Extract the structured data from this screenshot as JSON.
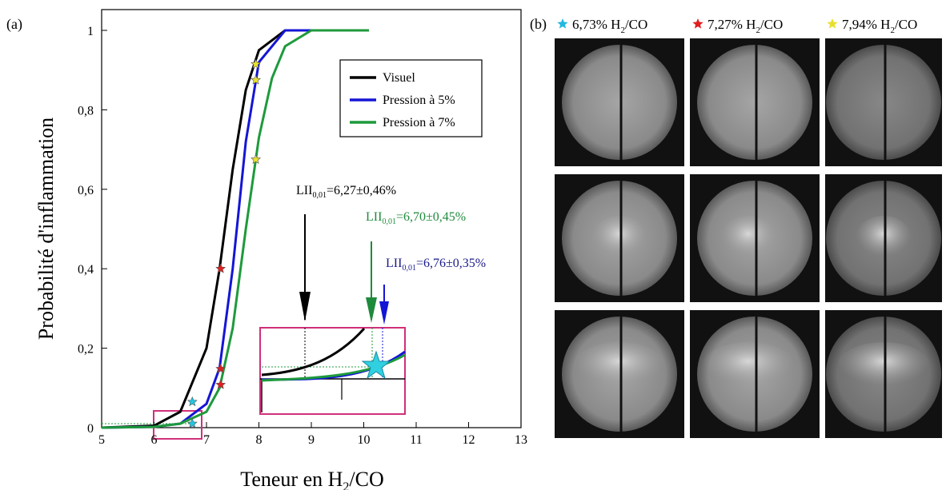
{
  "chart_data": {
    "type": "line",
    "panel_label": "(a)",
    "y_label": "Probabilité d'inflammation",
    "x_label": {
      "before": "Teneur en H",
      "sub": "2",
      "after": "/CO"
    },
    "xlim": [
      5,
      13
    ],
    "ylim": [
      0,
      1.0
    ],
    "xticks": [
      5,
      6,
      7,
      8,
      9,
      10,
      11,
      12,
      13
    ],
    "yticks": [
      0,
      {
        "value": 0.2,
        "label": "0,2"
      },
      {
        "value": 0.4,
        "label": "0,4"
      },
      {
        "value": 0.6,
        "label": "0,6"
      },
      {
        "value": 0.8,
        "label": "0,8"
      },
      1
    ],
    "legend": "upper right",
    "series": [
      {
        "name": "Visuel",
        "color": "#000000",
        "x": [
          5,
          6,
          6.5,
          7,
          7.25,
          7.5,
          7.75,
          8,
          8.5,
          9,
          10
        ],
        "values": [
          0,
          0.005,
          0.04,
          0.2,
          0.4,
          0.65,
          0.85,
          0.95,
          1,
          1,
          1
        ]
      },
      {
        "name": "Pression à 5%",
        "color": "#1515d6",
        "x": [
          5,
          6,
          6.5,
          7,
          7.25,
          7.5,
          7.75,
          8,
          8.5,
          9,
          10
        ],
        "values": [
          0,
          0.002,
          0.01,
          0.06,
          0.15,
          0.4,
          0.72,
          0.92,
          1,
          1,
          1
        ]
      },
      {
        "name": "Pression à 7%",
        "color": "#1e9a3c",
        "x": [
          5,
          6,
          6.5,
          7,
          7.25,
          7.5,
          7.75,
          8,
          8.25,
          8.5,
          9,
          10.1
        ],
        "values": [
          0,
          0.002,
          0.01,
          0.04,
          0.1,
          0.25,
          0.5,
          0.73,
          0.88,
          0.96,
          1,
          1
        ]
      }
    ],
    "markers": [
      {
        "color": "#22c6e0",
        "x": [
          6.73,
          6.73
        ],
        "y": [
          0.065,
          0.01
        ]
      },
      {
        "color": "#e01e1e",
        "x": [
          7.27,
          7.27,
          7.27
        ],
        "y": [
          0.4,
          0.148,
          0.108
        ]
      },
      {
        "color": "#e8e030",
        "x": [
          7.94,
          7.94,
          7.94
        ],
        "y": [
          0.915,
          0.875,
          0.675
        ]
      }
    ],
    "threshold_y": 0.01,
    "annotations": [
      {
        "base": "LII",
        "sub": "0,01",
        "text": "=6,27±0,46%",
        "color": "#000000"
      },
      {
        "base": "LII",
        "sub": "0,01",
        "text": "=6,70±0,45%",
        "color": "#1e8a3c"
      },
      {
        "base": "LII",
        "sub": "0,01",
        "text": "=6,76±0,35%",
        "color": "#1a1a8a"
      }
    ],
    "photo_panel": {
      "label": "(b)",
      "conditions": [
        {
          "color": "#22b8e0",
          "before": "6,73% H",
          "sub": "2",
          "after": "/CO"
        },
        {
          "color": "#e01e1e",
          "before": "7,27% H",
          "sub": "2",
          "after": "/CO"
        },
        {
          "color": "#e8e030",
          "before": "7,94% H",
          "sub": "2",
          "after": "/CO"
        }
      ]
    }
  }
}
